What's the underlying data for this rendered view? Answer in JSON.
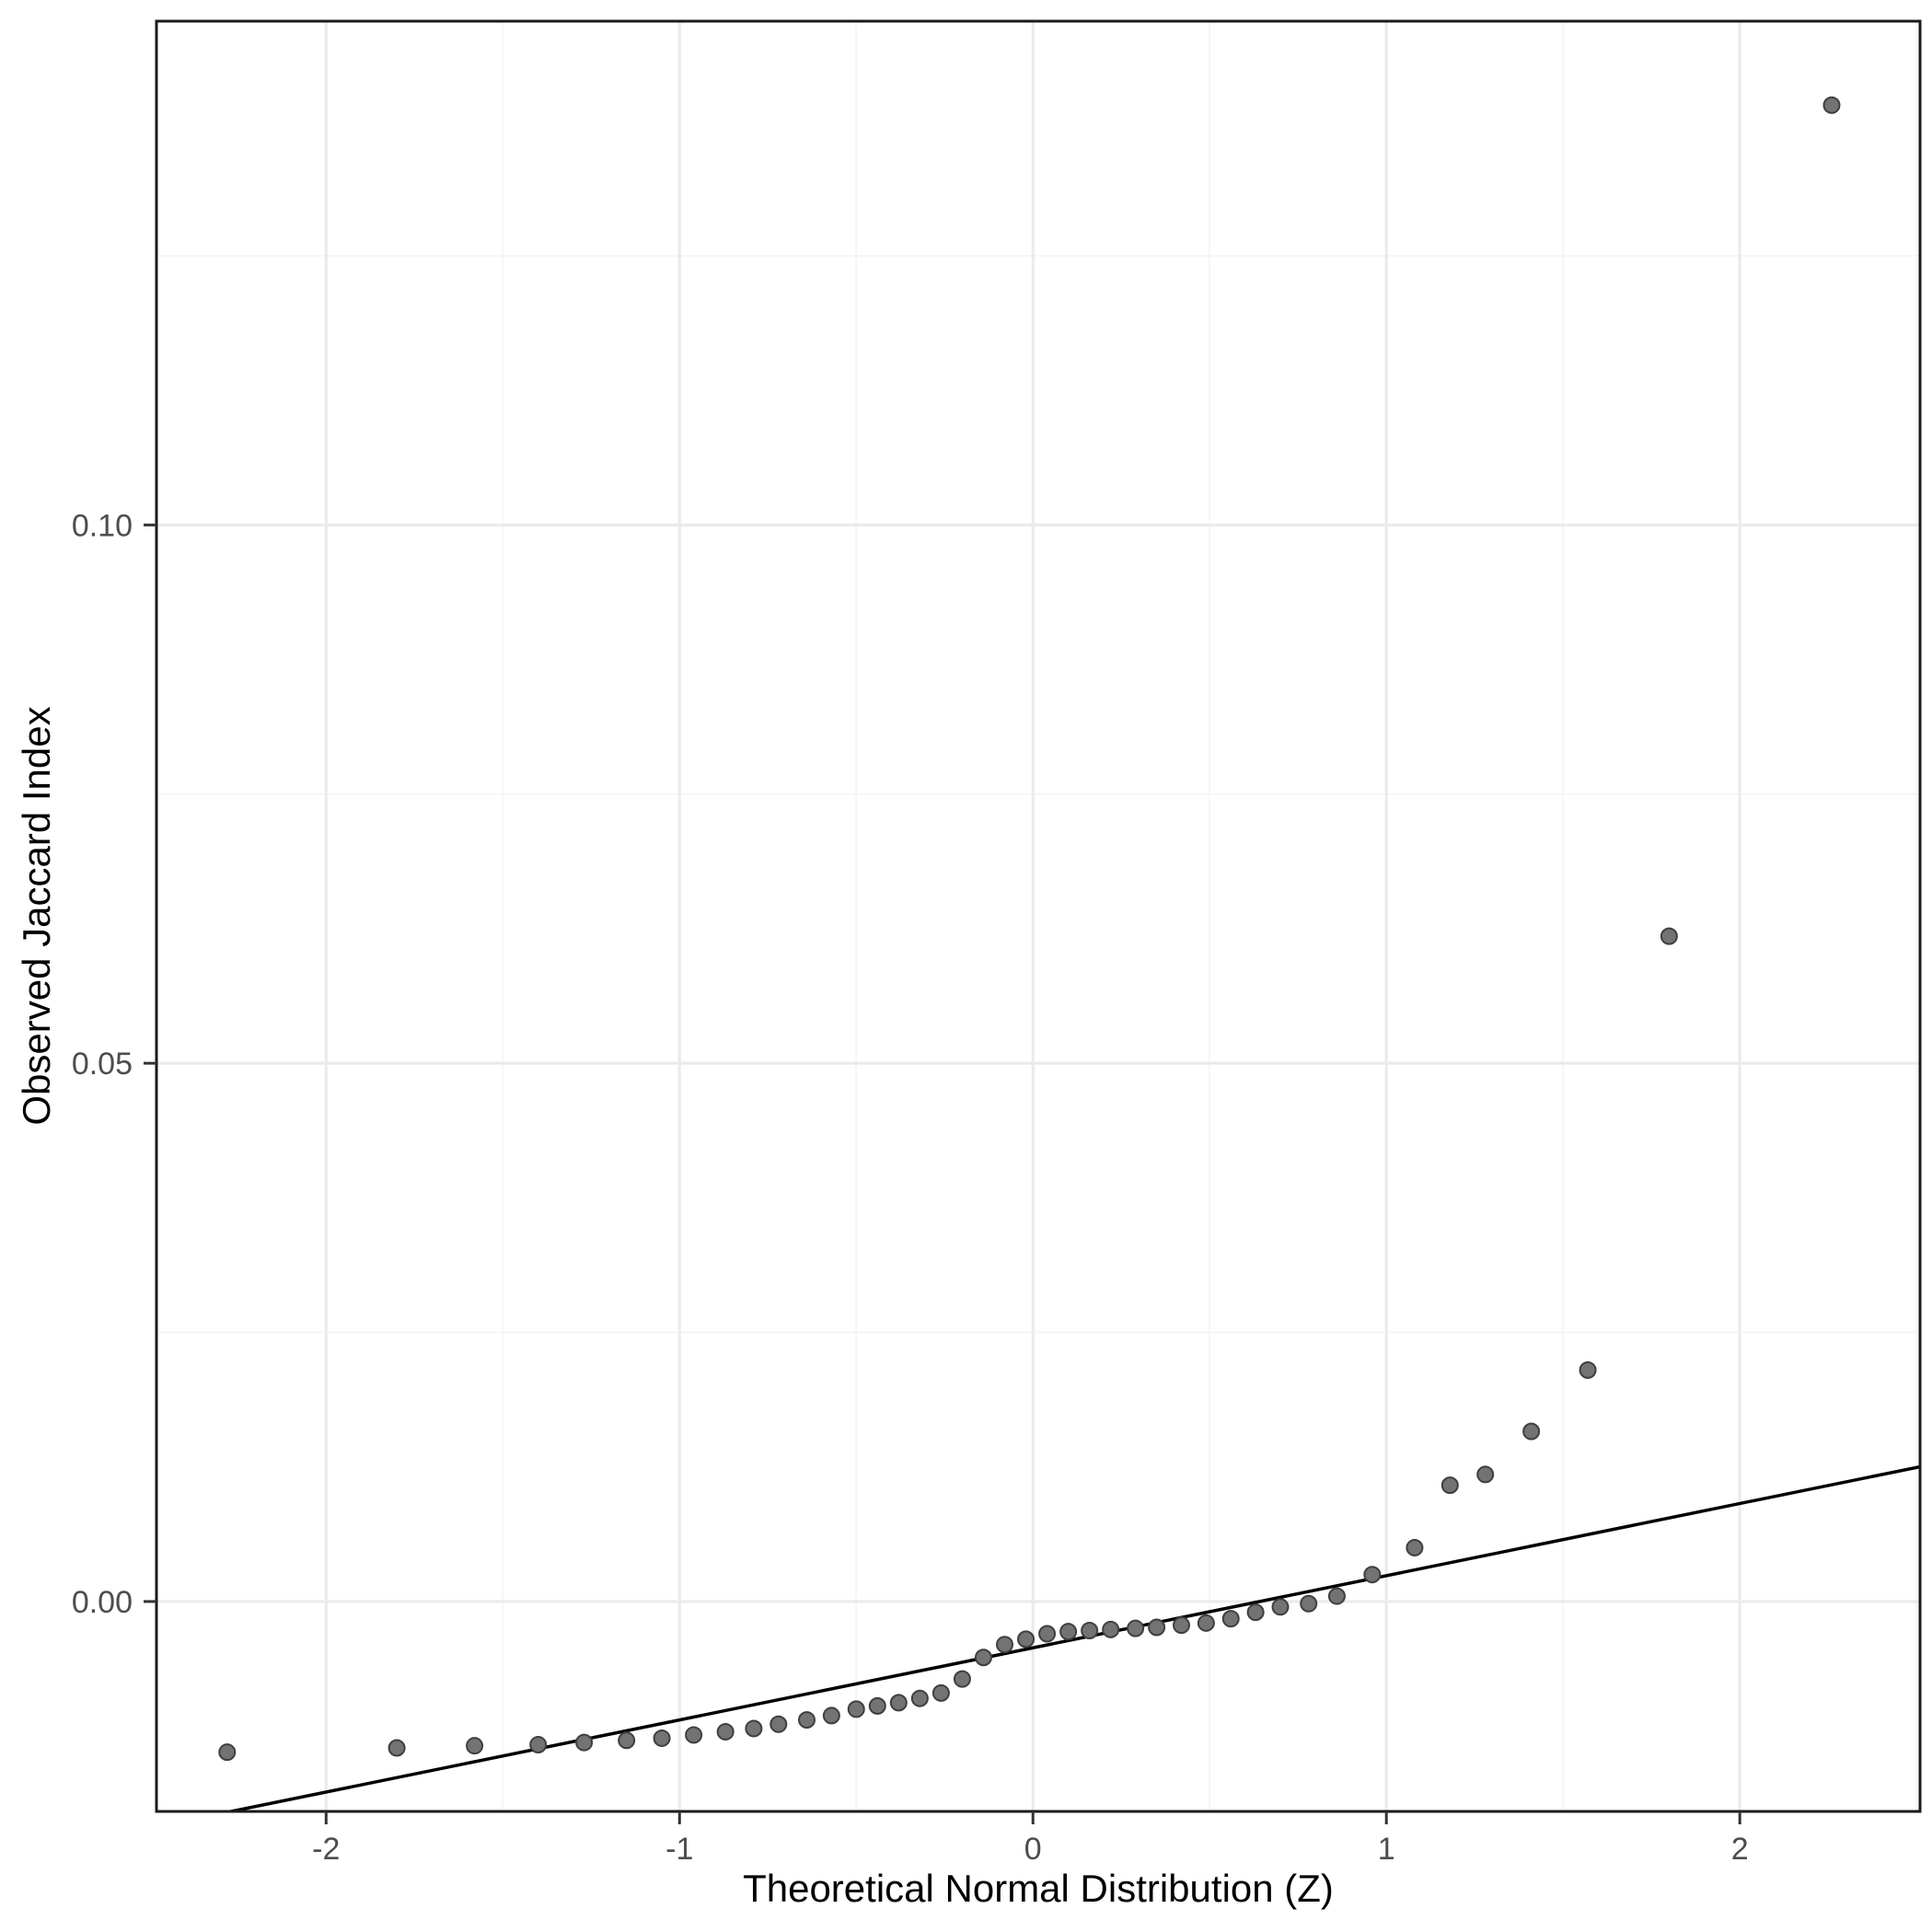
{
  "chart_data": {
    "type": "scatter",
    "title": "",
    "xlabel": "Theoretical Normal Distribution (Z)",
    "ylabel": "Observed Jaccard Index",
    "x_ticks": [
      -2,
      -1,
      0,
      1,
      2
    ],
    "x_tick_labels": [
      "-2",
      "-1",
      "0",
      "1",
      "2"
    ],
    "x_minor_ticks": [
      -2.5,
      -1.5,
      -0.5,
      0.5,
      1.5,
      2.5
    ],
    "y_ticks": [
      0.0,
      0.05,
      0.1
    ],
    "y_tick_labels": [
      "0.00",
      "0.05",
      "0.10"
    ],
    "y_minor_ticks": [
      -0.025,
      0.025,
      0.075,
      0.125
    ],
    "xlim": [
      -2.48,
      2.51
    ],
    "ylim": [
      -0.0195,
      0.1468
    ],
    "grid": true,
    "legend": "none",
    "reference_line": {
      "slope": 0.0067,
      "intercept": -0.0043,
      "color": "#000000"
    },
    "point_style": {
      "fill": "#737373",
      "stroke": "#3f3f3f",
      "radius": 8.5
    },
    "colors": {
      "grid_major": "#ebebeb",
      "grid_minor": "#f5f5f5",
      "panel_border": "#1a1a1a",
      "tick_mark": "#333333",
      "tick_label": "#4d4d4d",
      "axis_title": "#000000",
      "background": "#ffffff"
    },
    "points": [
      [
        -2.28,
        -0.014
      ],
      [
        -1.8,
        -0.0136
      ],
      [
        -1.58,
        -0.0134
      ],
      [
        -1.4,
        -0.0133
      ],
      [
        -1.27,
        -0.0131
      ],
      [
        -1.15,
        -0.0129
      ],
      [
        -1.05,
        -0.0127
      ],
      [
        -0.96,
        -0.0124
      ],
      [
        -0.87,
        -0.0121
      ],
      [
        -0.79,
        -0.0118
      ],
      [
        -0.72,
        -0.0114
      ],
      [
        -0.64,
        -0.011
      ],
      [
        -0.57,
        -0.0106
      ],
      [
        -0.5,
        -0.01
      ],
      [
        -0.44,
        -0.0097
      ],
      [
        -0.38,
        -0.0094
      ],
      [
        -0.32,
        -0.009
      ],
      [
        -0.26,
        -0.0085
      ],
      [
        -0.2,
        -0.0072
      ],
      [
        -0.14,
        -0.0052
      ],
      [
        -0.08,
        -0.004
      ],
      [
        -0.02,
        -0.0035
      ],
      [
        0.04,
        -0.003
      ],
      [
        0.1,
        -0.0028
      ],
      [
        0.16,
        -0.0027
      ],
      [
        0.22,
        -0.0026
      ],
      [
        0.29,
        -0.0025
      ],
      [
        0.35,
        -0.0024
      ],
      [
        0.42,
        -0.0022
      ],
      [
        0.49,
        -0.002
      ],
      [
        0.56,
        -0.0016
      ],
      [
        0.63,
        -0.001
      ],
      [
        0.7,
        -0.0005
      ],
      [
        0.78,
        -0.0002
      ],
      [
        0.86,
        0.0005
      ],
      [
        0.96,
        0.0025
      ],
      [
        1.08,
        0.005
      ],
      [
        1.18,
        0.0108
      ],
      [
        1.28,
        0.0118
      ],
      [
        1.41,
        0.0158
      ],
      [
        1.57,
        0.0215
      ],
      [
        1.8,
        0.0618
      ],
      [
        2.26,
        0.139
      ]
    ]
  }
}
